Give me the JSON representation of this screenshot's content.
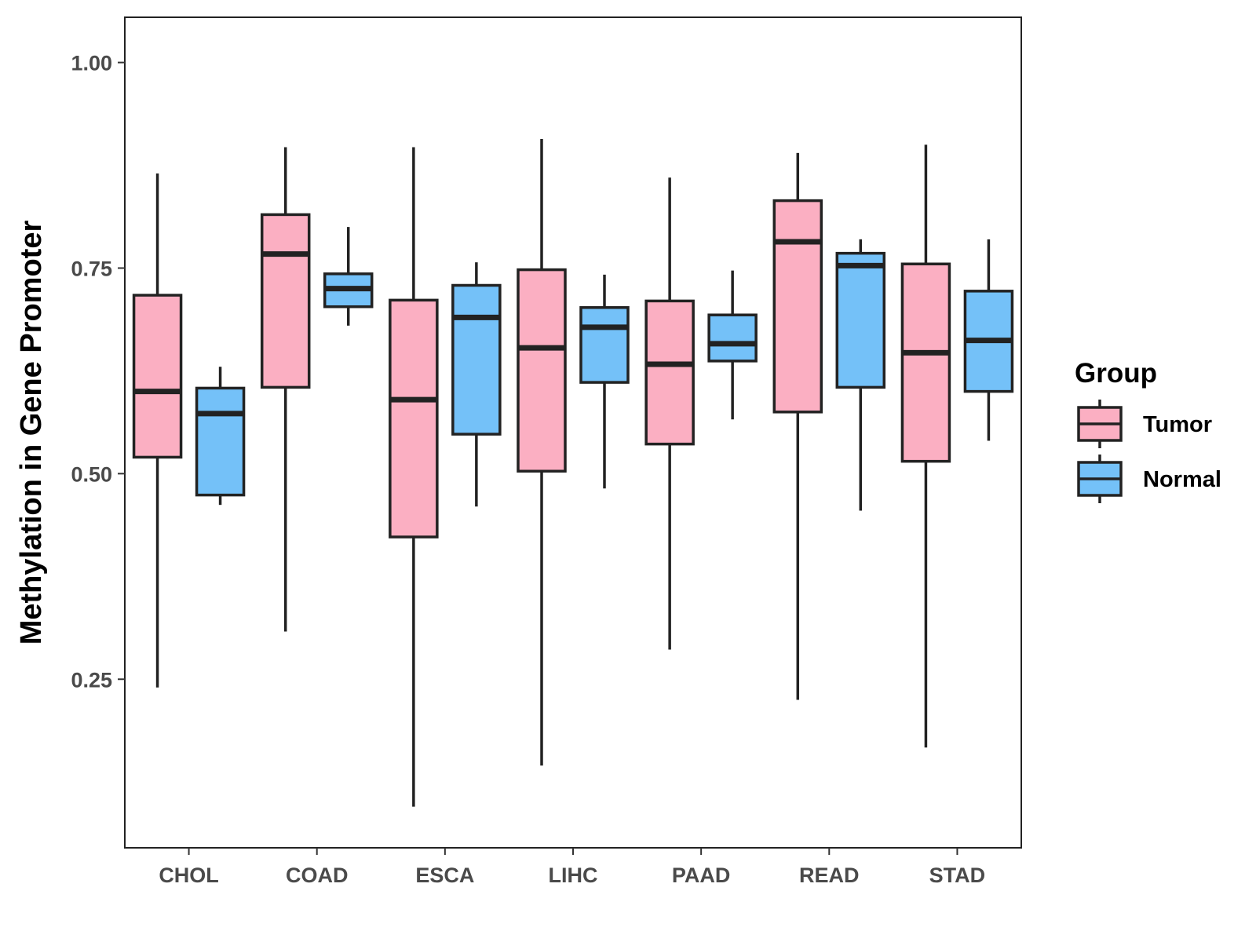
{
  "chart_data": {
    "type": "boxplot",
    "title": "",
    "xlabel": "",
    "ylabel": "Methylation in Gene Promoter",
    "ylim": [
      0.045,
      1.055
    ],
    "yticks": [
      0.25,
      0.5,
      0.75,
      1.0
    ],
    "ytick_labels": [
      "0.25",
      "0.50",
      "0.75",
      "1.00"
    ],
    "grid": false,
    "categories": [
      "CHOL",
      "COAD",
      "ESCA",
      "LIHC",
      "PAAD",
      "READ",
      "STAD"
    ],
    "legend": {
      "title": "Group",
      "position": "right",
      "entries": [
        {
          "name": "Tumor",
          "color": "#FBAFC2"
        },
        {
          "name": "Normal",
          "color": "#74C1F8"
        }
      ]
    },
    "series": [
      {
        "name": "Tumor",
        "color": "#FBAFC2",
        "boxes": [
          {
            "category": "CHOL",
            "whisker_low": 0.24,
            "q1": 0.52,
            "median": 0.6,
            "q3": 0.717,
            "whisker_high": 0.865
          },
          {
            "category": "COAD",
            "whisker_low": 0.308,
            "q1": 0.605,
            "median": 0.767,
            "q3": 0.815,
            "whisker_high": 0.897
          },
          {
            "category": "ESCA",
            "whisker_low": 0.095,
            "q1": 0.423,
            "median": 0.59,
            "q3": 0.711,
            "whisker_high": 0.897
          },
          {
            "category": "LIHC",
            "whisker_low": 0.145,
            "q1": 0.503,
            "median": 0.653,
            "q3": 0.748,
            "whisker_high": 0.907
          },
          {
            "category": "PAAD",
            "whisker_low": 0.286,
            "q1": 0.536,
            "median": 0.633,
            "q3": 0.71,
            "whisker_high": 0.86
          },
          {
            "category": "READ",
            "whisker_low": 0.225,
            "q1": 0.575,
            "median": 0.782,
            "q3": 0.832,
            "whisker_high": 0.89
          },
          {
            "category": "STAD",
            "whisker_low": 0.167,
            "q1": 0.515,
            "median": 0.647,
            "q3": 0.755,
            "whisker_high": 0.9
          }
        ]
      },
      {
        "name": "Normal",
        "color": "#74C1F8",
        "boxes": [
          {
            "category": "CHOL",
            "whisker_low": 0.462,
            "q1": 0.474,
            "median": 0.573,
            "q3": 0.604,
            "whisker_high": 0.63
          },
          {
            "category": "COAD",
            "whisker_low": 0.68,
            "q1": 0.703,
            "median": 0.725,
            "q3": 0.743,
            "whisker_high": 0.8
          },
          {
            "category": "ESCA",
            "whisker_low": 0.46,
            "q1": 0.548,
            "median": 0.69,
            "q3": 0.729,
            "whisker_high": 0.757
          },
          {
            "category": "LIHC",
            "whisker_low": 0.482,
            "q1": 0.611,
            "median": 0.678,
            "q3": 0.702,
            "whisker_high": 0.742
          },
          {
            "category": "PAAD",
            "whisker_low": 0.566,
            "q1": 0.637,
            "median": 0.658,
            "q3": 0.693,
            "whisker_high": 0.747
          },
          {
            "category": "READ",
            "whisker_low": 0.455,
            "q1": 0.605,
            "median": 0.753,
            "q3": 0.768,
            "whisker_high": 0.785
          },
          {
            "category": "STAD",
            "whisker_low": 0.54,
            "q1": 0.6,
            "median": 0.662,
            "q3": 0.722,
            "whisker_high": 0.785
          }
        ]
      }
    ]
  }
}
